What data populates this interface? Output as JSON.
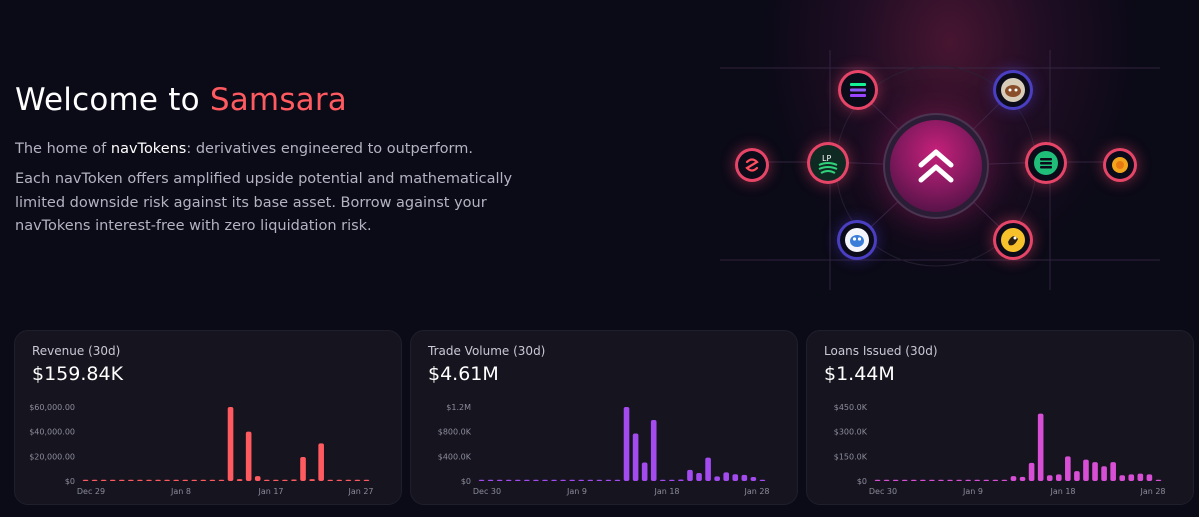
{
  "hero": {
    "title_prefix": "Welcome to ",
    "title_brand": "Samsara",
    "tagline_prefix": "The home of ",
    "tagline_bold": "navTokens",
    "tagline_suffix": ": derivatives engineered to outperform.",
    "description": "Each navToken offers amplified upside potential and mathematically limited downside risk against its base asset. Borrow against your navTokens interest-free with zero liquidation risk."
  },
  "network": {
    "center_icon": "double-chevron-up-icon",
    "nodes": [
      {
        "name": "solana-token-icon"
      },
      {
        "name": "mascot-token-icon"
      },
      {
        "name": "lp-token-icon",
        "text": "LP"
      },
      {
        "name": "nav-token-icon"
      },
      {
        "name": "swirl-token-icon"
      },
      {
        "name": "sun-token-icon"
      },
      {
        "name": "bird-token-icon"
      },
      {
        "name": "bonk-token-icon"
      }
    ],
    "accent": "#ff5a5f"
  },
  "stats": [
    {
      "label": "Revenue (30d)",
      "value": "$159.84K",
      "color": "#ff5a5f",
      "chart_data": {
        "type": "bar",
        "y_ticks": [
          "$60,000.00",
          "$40,000.00",
          "$20,000.00",
          "$0"
        ],
        "ylim": [
          0,
          60000
        ],
        "x_ticks": [
          "Dec 29",
          "Jan 8",
          "Jan 17",
          "Jan 27"
        ],
        "values": [
          0,
          0,
          0,
          0,
          0,
          0,
          0,
          0,
          0,
          0,
          0,
          0,
          0,
          0,
          0,
          0,
          60000,
          1500,
          40000,
          4000,
          0,
          0,
          0,
          1200,
          19500,
          1500,
          30500,
          0,
          800,
          0,
          600,
          0
        ]
      }
    },
    {
      "label": "Trade Volume (30d)",
      "value": "$4.61M",
      "color": "#a44bf0",
      "chart_data": {
        "type": "bar",
        "y_ticks": [
          "$1.2M",
          "$800.0K",
          "$400.0K",
          "$0"
        ],
        "ylim": [
          0,
          1200000
        ],
        "x_ticks": [
          "Dec 30",
          "Jan 9",
          "Jan 18",
          "Jan 28"
        ],
        "values": [
          0,
          0,
          0,
          0,
          0,
          0,
          0,
          0,
          0,
          0,
          0,
          0,
          0,
          0,
          0,
          0,
          1200000,
          770000,
          300000,
          990000,
          15000,
          20000,
          25000,
          180000,
          130000,
          380000,
          75000,
          140000,
          110000,
          100000,
          65000,
          20000
        ]
      }
    },
    {
      "label": "Loans Issued (30d)",
      "value": "$1.44M",
      "color": "#d84fd6",
      "chart_data": {
        "type": "bar",
        "y_ticks": [
          "$450.0K",
          "$300.0K",
          "$150.0K",
          "$0"
        ],
        "ylim": [
          0,
          450000
        ],
        "x_ticks": [
          "Dec 30",
          "Jan 9",
          "Jan 18",
          "Jan 28"
        ],
        "values": [
          0,
          0,
          0,
          0,
          0,
          0,
          0,
          0,
          0,
          0,
          0,
          0,
          0,
          0,
          0,
          30000,
          25000,
          110000,
          410000,
          35000,
          40000,
          150000,
          60000,
          130000,
          115000,
          90000,
          115000,
          35000,
          40000,
          45000,
          40000,
          0
        ]
      }
    }
  ]
}
